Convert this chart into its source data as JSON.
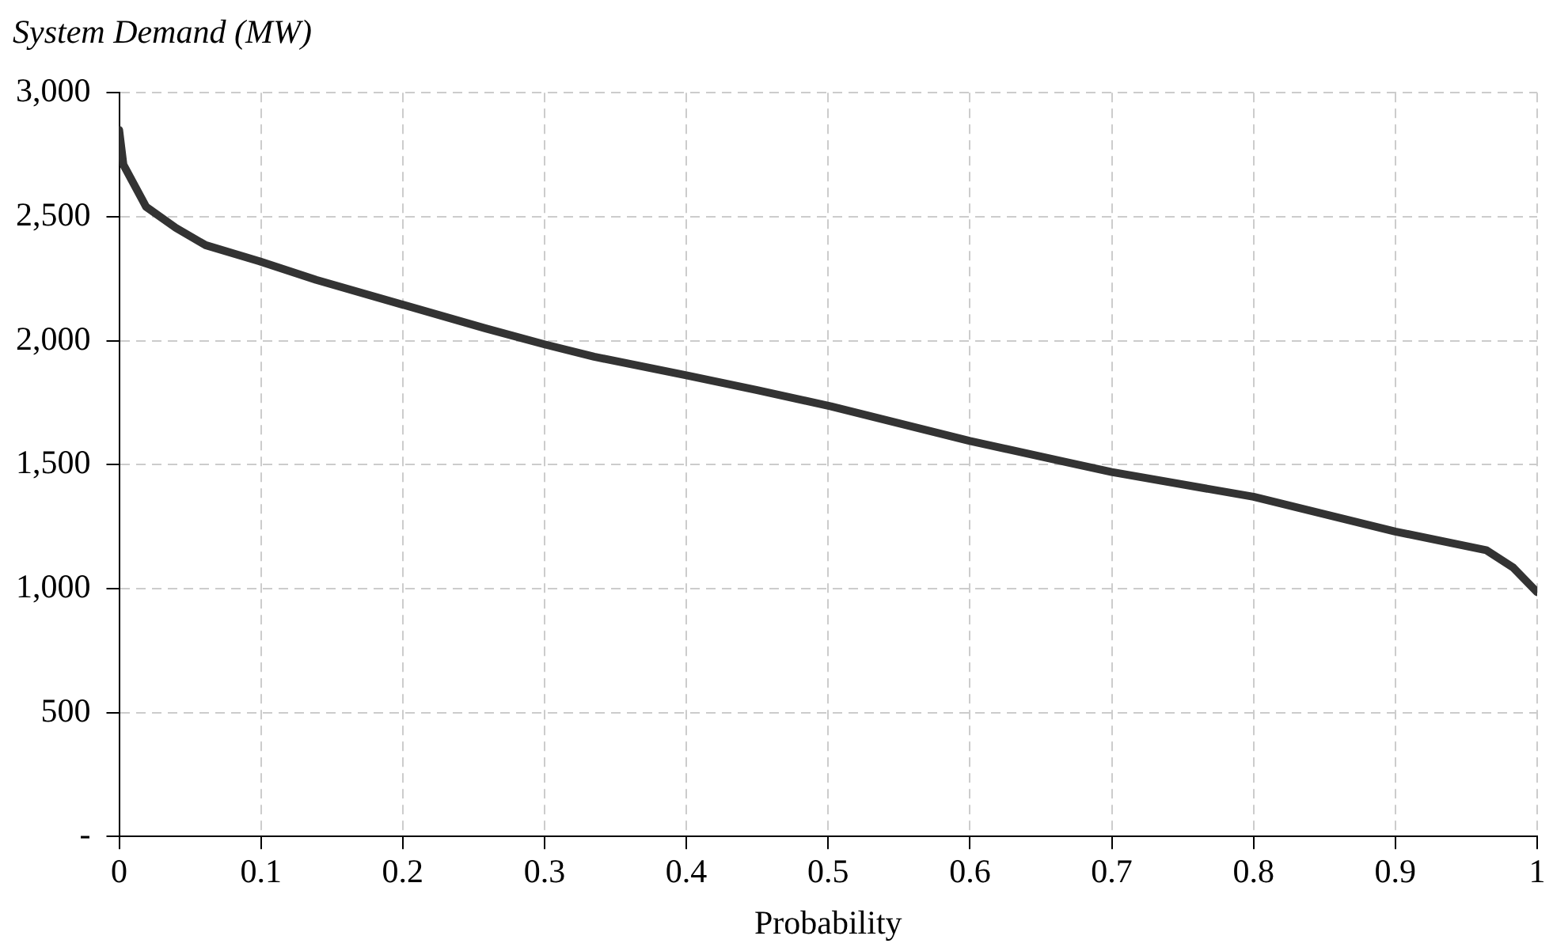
{
  "chart_data": {
    "type": "line",
    "ylabel": "System Demand (MW)",
    "xlabel": "Probability",
    "xlim": [
      0,
      1
    ],
    "xticks": [
      0,
      0.1,
      0.2,
      0.3,
      0.4,
      0.5,
      0.6,
      0.7,
      0.8,
      0.9,
      1
    ],
    "ylim": [
      0,
      3000
    ],
    "yticks": [
      {
        "value": 0,
        "label": "-"
      },
      {
        "value": 500,
        "label": "500"
      },
      {
        "value": 1000,
        "label": "1,000"
      },
      {
        "value": 1500,
        "label": "1,500"
      },
      {
        "value": 2000,
        "label": "2,000"
      },
      {
        "value": 2500,
        "label": "2,500"
      },
      {
        "value": 3000,
        "label": "3,000"
      }
    ],
    "grid": true,
    "legend": false,
    "marker": "none",
    "line_style": "solid",
    "series": [
      {
        "color": "#333333",
        "x": [
          0,
          0.003,
          0.019,
          0.04,
          0.061,
          0.099,
          0.139,
          0.2,
          0.258,
          0.3,
          0.335,
          0.4,
          0.45,
          0.502,
          0.6,
          0.668,
          0.7,
          0.8,
          0.9,
          0.964,
          0.983,
          1
        ],
        "values": [
          2850,
          2710,
          2540,
          2455,
          2385,
          2320,
          2245,
          2145,
          2050,
          1985,
          1935,
          1860,
          1800,
          1735,
          1595,
          1510,
          1470,
          1370,
          1230,
          1155,
          1085,
          985
        ]
      }
    ]
  }
}
